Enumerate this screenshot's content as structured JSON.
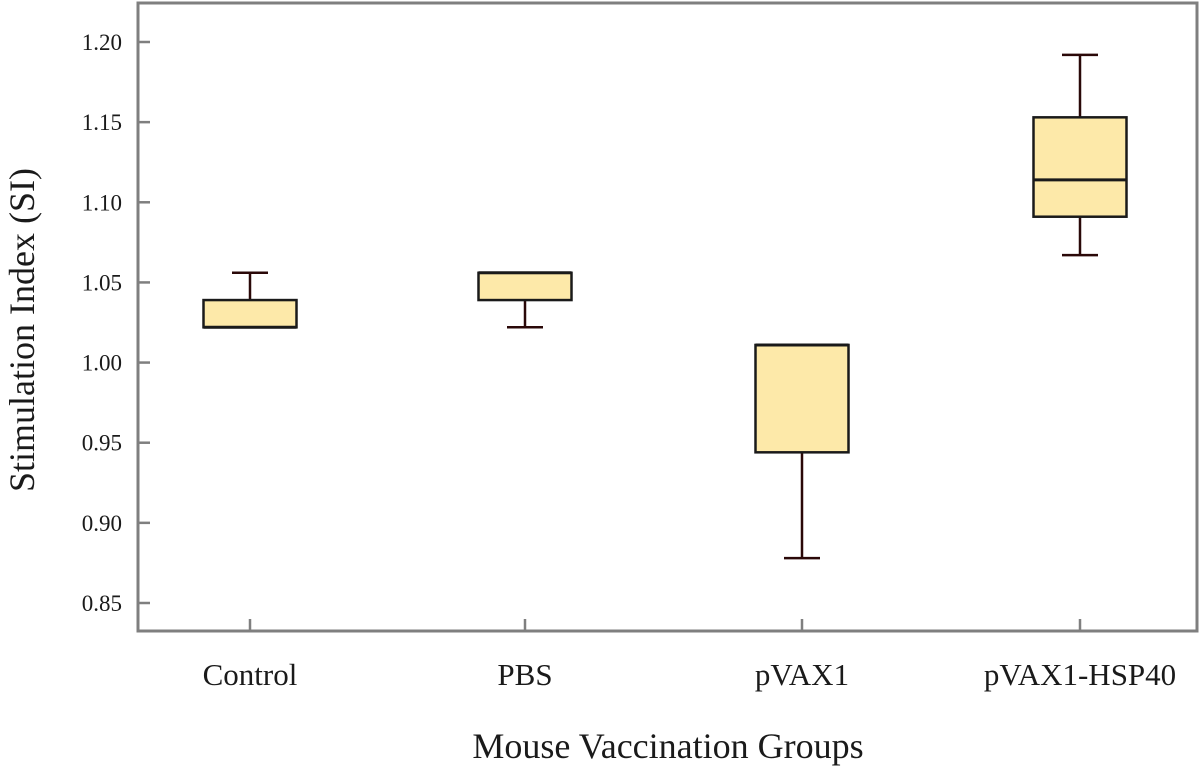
{
  "chart_data": {
    "type": "boxplot",
    "title": "",
    "xlabel": "Mouse Vaccination Groups",
    "ylabel": "Stimulation Index (SI)",
    "ylim": [
      0.84,
      1.225
    ],
    "yticks": [
      "0.85",
      "0.90",
      "0.95",
      "1.00",
      "1.05",
      "1.10",
      "1.15",
      "1.20"
    ],
    "categories": [
      "Control",
      "PBS",
      "pVAX1",
      "pVAX1-HSP40"
    ],
    "boxes": [
      {
        "name": "Control",
        "min": 1.022,
        "q1": 1.022,
        "median": 1.022,
        "q3": 1.039,
        "max": 1.056
      },
      {
        "name": "PBS",
        "min": 1.022,
        "q1": 1.039,
        "median": 1.056,
        "q3": 1.056,
        "max": 1.056
      },
      {
        "name": "pVAX1",
        "min": 0.878,
        "q1": 0.944,
        "median": 1.011,
        "q3": 1.011,
        "max": 1.011
      },
      {
        "name": "pVAX1-HSP40",
        "min": 1.067,
        "q1": 1.091,
        "median": 1.114,
        "q3": 1.153,
        "max": 1.192
      }
    ],
    "box_fill": "#fde9a9",
    "box_stroke": "#1a1a1a",
    "whisker_color": "#2a0808",
    "frame_color": "#7f7f7f"
  }
}
